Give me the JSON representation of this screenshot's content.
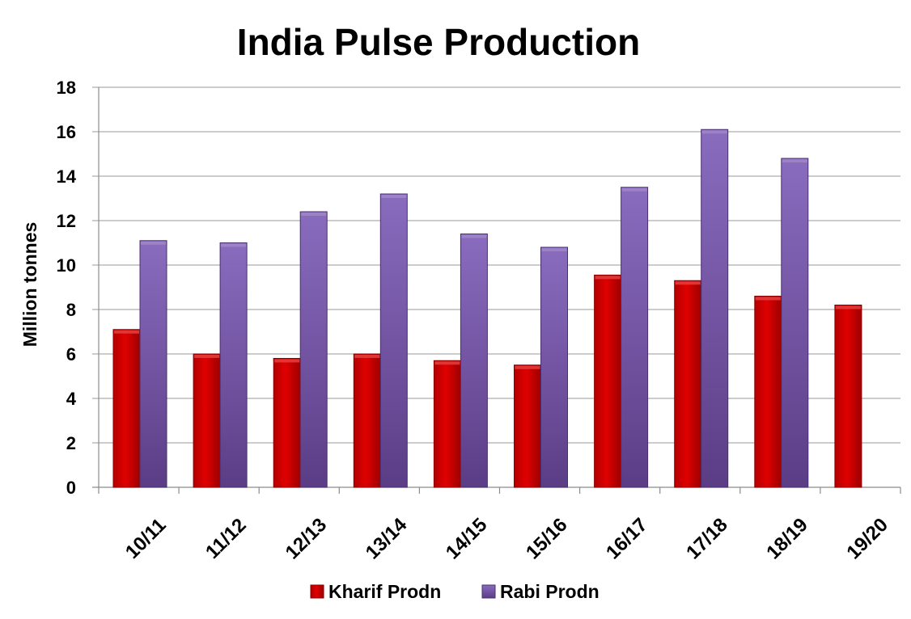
{
  "chart_data": {
    "type": "bar",
    "title": "India Pulse Production",
    "xlabel": "",
    "ylabel": "Million tonnes",
    "ylim": [
      0,
      18
    ],
    "yticks": [
      0,
      2,
      4,
      6,
      8,
      10,
      12,
      14,
      16,
      18
    ],
    "grid": true,
    "legend_position": "bottom",
    "categories": [
      "10/11",
      "11/12",
      "12/13",
      "13/14",
      "14/15",
      "15/16",
      "16/17",
      "17/18",
      "18/19",
      "19/20"
    ],
    "series": [
      {
        "name": "Kharif Prodn",
        "color": "#cc0000",
        "values": [
          7.1,
          6.0,
          5.8,
          6.0,
          5.7,
          5.5,
          9.55,
          9.3,
          8.6,
          8.2
        ]
      },
      {
        "name": "Rabi Prodn",
        "color": "#8064a2",
        "values": [
          11.1,
          11.0,
          12.4,
          13.2,
          11.4,
          10.8,
          13.5,
          16.1,
          14.8,
          null
        ]
      }
    ]
  }
}
